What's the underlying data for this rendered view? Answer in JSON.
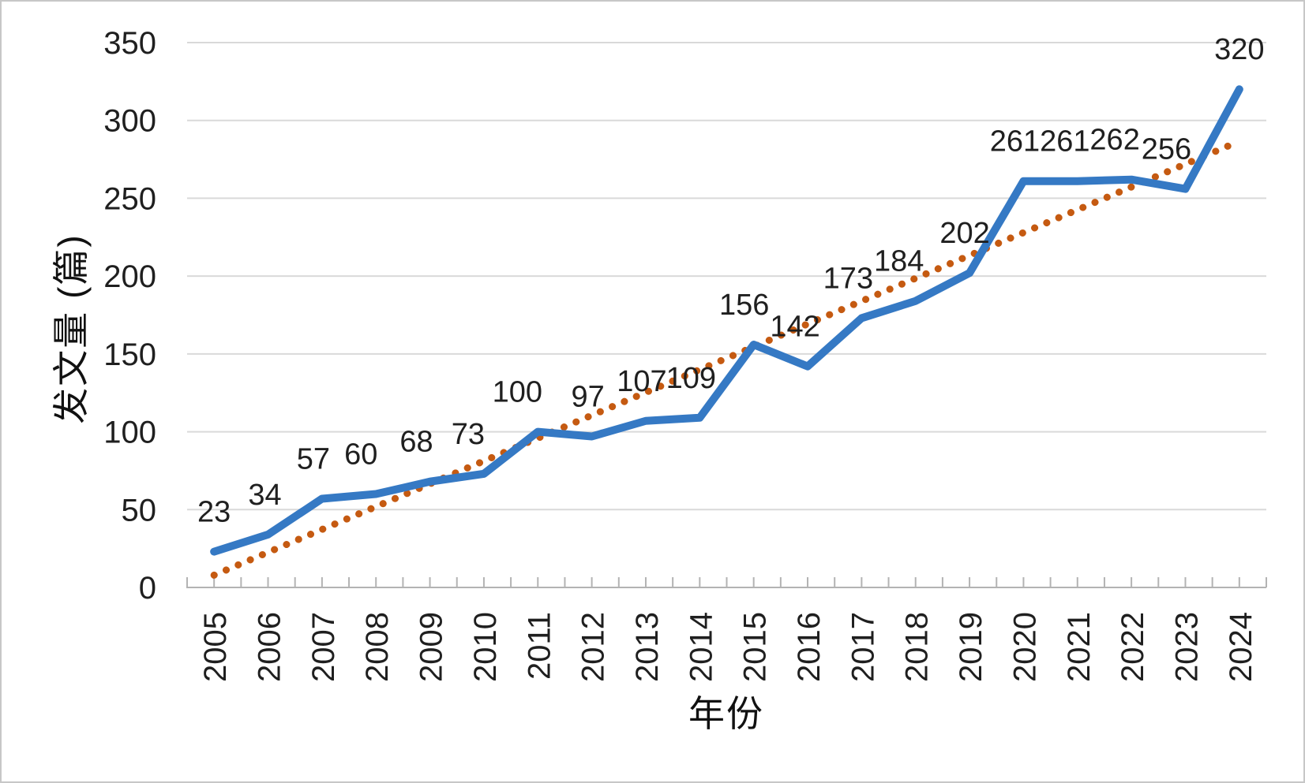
{
  "chart_data": {
    "type": "line",
    "title": "",
    "xlabel": "年份",
    "ylabel": "发文量 (篇)",
    "categories": [
      "2005",
      "2006",
      "2007",
      "2008",
      "2009",
      "2010",
      "2011",
      "2012",
      "2013",
      "2014",
      "2015",
      "2016",
      "2017",
      "2018",
      "2019",
      "2020",
      "2021",
      "2022",
      "2023",
      "2024"
    ],
    "series": [
      {
        "role": "publications-per-year",
        "type": "line",
        "color": "#3579C4",
        "data_labels": true,
        "values": [
          23,
          34,
          57,
          60,
          68,
          73,
          100,
          97,
          107,
          109,
          156,
          142,
          173,
          184,
          202,
          261,
          261,
          262,
          256,
          320
        ]
      },
      {
        "role": "trend",
        "type": "linear-trendline",
        "style": "dotted",
        "color": "#C55A11"
      }
    ],
    "ylim": [
      0,
      350
    ],
    "ytick_step": 50,
    "yticks": [
      0,
      50,
      100,
      150,
      200,
      250,
      300,
      350
    ],
    "grid": "horizontal",
    "legend": "none",
    "colors": {
      "gridline": "#D9D9D9",
      "axis_line": "#B3B3B3",
      "label_text": "#1F1F1F"
    }
  }
}
